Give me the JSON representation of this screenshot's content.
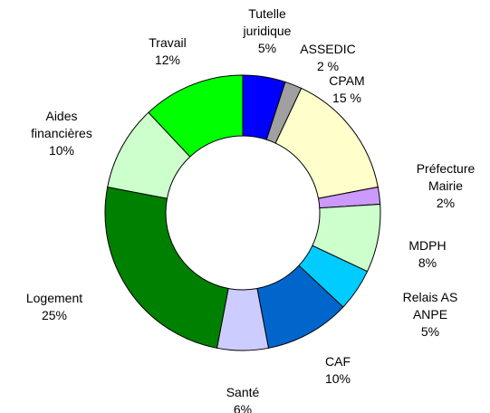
{
  "chart_data": {
    "type": "donut",
    "categories": [
      "Tutelle\njuridique",
      "ASSEDIC",
      "CPAM",
      "Préfecture\nMairie",
      "MDPH",
      "Relais AS\nANPE",
      "CAF",
      "Santé",
      "Logement",
      "Aides\nfinancières",
      "Travail"
    ],
    "values": [
      5,
      2,
      15,
      2,
      8,
      5,
      10,
      6,
      25,
      10,
      12
    ],
    "value_labels": [
      "5%",
      "2 %",
      "15 %",
      "2%",
      "8%",
      "5%",
      "10%",
      "6%",
      "25%",
      "10%",
      "12%"
    ],
    "colors": [
      "#0000ff",
      "#a0a0a0",
      "#ffffcc",
      "#cc99ff",
      "#ccffcc",
      "#00ccff",
      "#0066cc",
      "#ccccff",
      "#008000",
      "#ccffcc",
      "#00ff00"
    ]
  }
}
